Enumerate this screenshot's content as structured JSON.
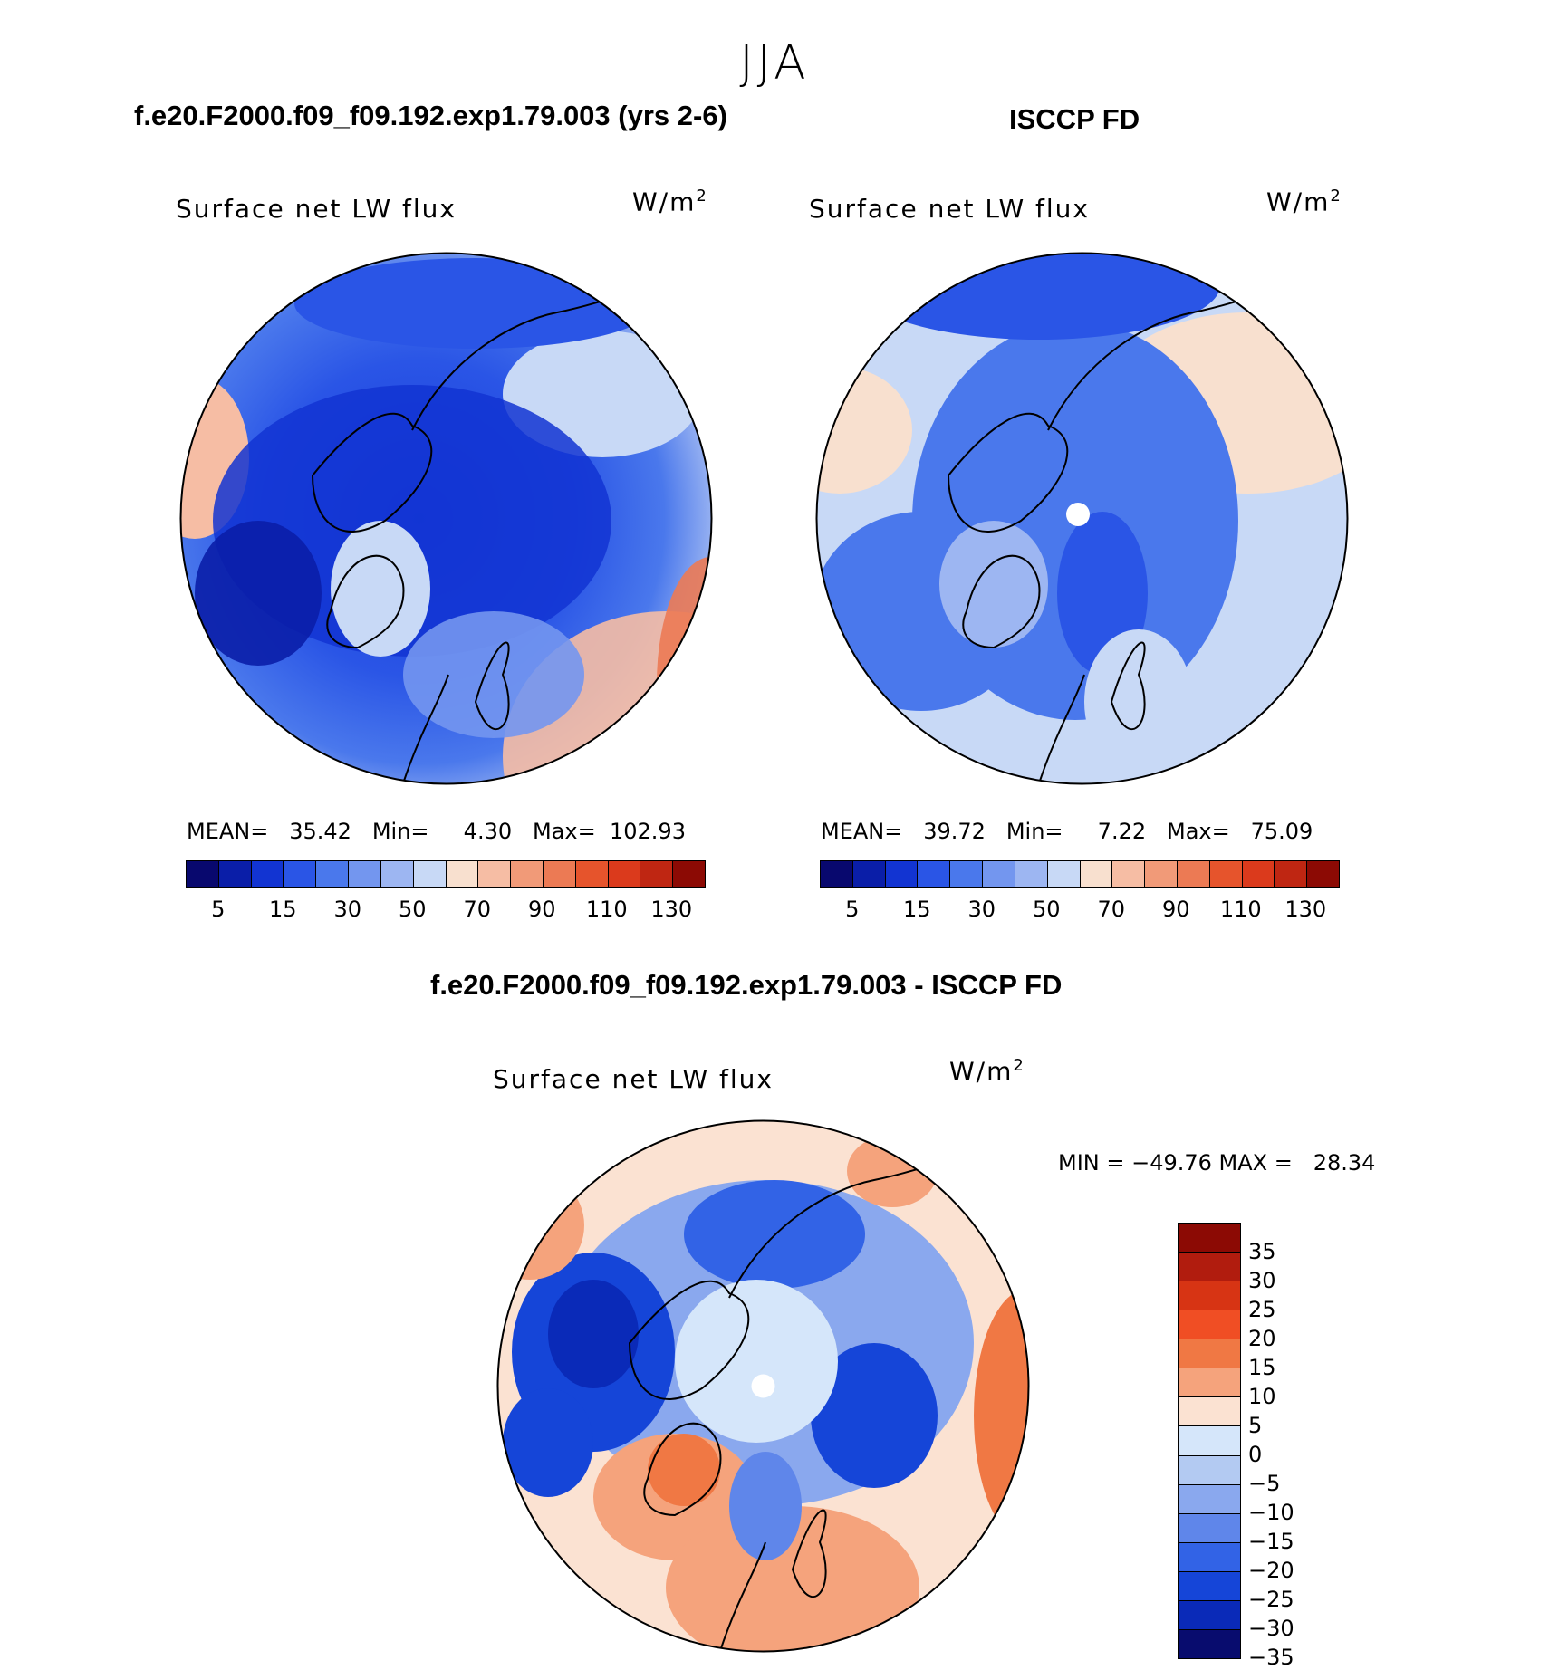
{
  "season": "JJA",
  "panels": [
    {
      "case_title": "f.e20.F2000.f09_f09.192.exp1.79.003 (yrs 2-6)",
      "field": "Surface net LW flux",
      "units": "W/m",
      "units_sup": "2",
      "stats": "MEAN=   35.42   Min=     4.30   Max=  102.93",
      "colorbar_labels": [
        "5",
        "15",
        "30",
        "50",
        "70",
        "90",
        "110",
        "130"
      ]
    },
    {
      "case_title": "ISCCP FD",
      "field": "Surface net LW flux",
      "units": "W/m",
      "units_sup": "2",
      "stats": "MEAN=   39.72   Min=     7.22   Max=   75.09",
      "colorbar_labels": [
        "5",
        "15",
        "30",
        "50",
        "70",
        "90",
        "110",
        "130"
      ]
    }
  ],
  "diff": {
    "case_title": "f.e20.F2000.f09_f09.192.exp1.79.003 - ISCCP FD",
    "field": "Surface net LW flux",
    "units": "W/m",
    "units_sup": "2",
    "stats": "MIN = −49.76 MAX =   28.34",
    "colorbar_labels": [
      "35",
      "30",
      "25",
      "20",
      "15",
      "10",
      "5",
      "0",
      "−5",
      "−10",
      "−15",
      "−20",
      "−25",
      "−30",
      "−35"
    ]
  },
  "colors": {
    "abs_scale": [
      "#08086e",
      "#0a1ea8",
      "#1234d2",
      "#2a55e6",
      "#4a78ec",
      "#7396ef",
      "#9db6f2",
      "#c8d9f6",
      "#f8e0cf",
      "#f6bda4",
      "#f19a78",
      "#ec7a54",
      "#e6542c",
      "#db3a1c",
      "#bf2612",
      "#8c0a04"
    ],
    "diff_scale": [
      "#8c0a04",
      "#b11c0e",
      "#d73414",
      "#f04e24",
      "#f07844",
      "#f5a37c",
      "#fbe2d2",
      "#d5e6fa",
      "#b3caf2",
      "#8aa8ee",
      "#5f86ea",
      "#3263e6",
      "#1545d8",
      "#0a2ab8",
      "#080c6e"
    ]
  }
}
